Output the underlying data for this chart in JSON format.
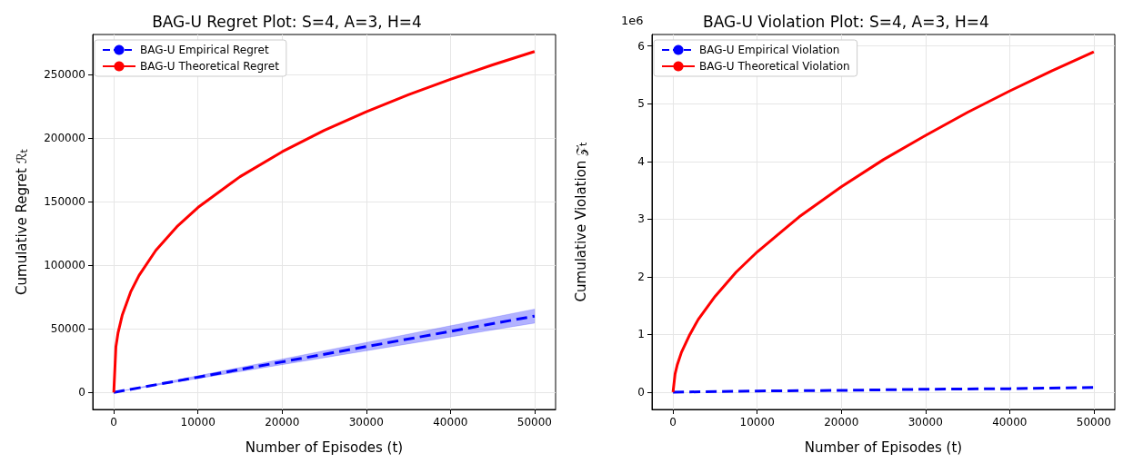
{
  "chart_data": [
    {
      "type": "line",
      "title": "BAG-U Regret Plot: S=4, A=3, H=4",
      "xlabel": "Number of Episodes (t)",
      "ylabel": "Cumulative Regret ℛ$_{t}$",
      "series": [
        {
          "name": "BAG-U Empirical Regret",
          "color": "#0000ff",
          "line_style": "dashed",
          "x": [
            0,
            10000,
            20000,
            30000,
            40000,
            50000
          ],
          "values": [
            0,
            12000,
            24000,
            36000,
            48000,
            60000
          ],
          "lower": [
            0,
            10900,
            21800,
            32700,
            43600,
            54500
          ],
          "upper": [
            0,
            13100,
            26200,
            39300,
            52400,
            65500
          ]
        },
        {
          "name": "BAG-U Theoretical Regret",
          "color": "#ff0000",
          "line_style": "solid",
          "x": [
            0,
            250,
            500,
            1000,
            2000,
            3000,
            5000,
            7500,
            10000,
            15000,
            20000,
            25000,
            30000,
            35000,
            40000,
            45000,
            50000
          ],
          "values": [
            0,
            35800,
            46600,
            60600,
            78900,
            92000,
            111700,
            130300,
            145400,
            169600,
            189200,
            206000,
            220700,
            234000,
            246200,
            257500,
            268000
          ]
        }
      ],
      "xlim": [
        -2500,
        52500
      ],
      "xticks": [
        0,
        10000,
        20000,
        30000,
        40000,
        50000
      ],
      "ylim": [
        -13400,
        281400
      ],
      "yticks": [
        0,
        50000,
        100000,
        150000,
        200000,
        250000
      ],
      "grid": true,
      "legend": "top left",
      "marker": "none"
    },
    {
      "type": "line",
      "title": "BAG-U Violation Plot: S=4, A=3, H=4",
      "xlabel": "Number of Episodes (t)",
      "ylabel": "Cumulative Violation 𝒵$_{t}$",
      "annotations": [
        "1e6"
      ],
      "series": [
        {
          "name": "BAG-U Empirical Violation",
          "color": "#0000ff",
          "line_style": "dashed",
          "x": [
            0,
            10000,
            20000,
            30000,
            40000,
            50000
          ],
          "values": [
            0,
            0.02,
            0.03,
            0.05,
            0.06,
            0.08
          ]
        },
        {
          "name": "BAG-U Theoretical Violation",
          "color": "#ff0000",
          "line_style": "solid",
          "x": [
            0,
            250,
            500,
            1000,
            2000,
            3000,
            5000,
            7500,
            10000,
            15000,
            20000,
            25000,
            30000,
            35000,
            40000,
            45000,
            50000
          ],
          "values": [
            0,
            0.32,
            0.47,
            0.69,
            1.0,
            1.26,
            1.66,
            2.08,
            2.43,
            3.04,
            3.56,
            4.03,
            4.45,
            4.85,
            5.22,
            5.57,
            5.9
          ]
        }
      ],
      "xlim": [
        -2500,
        52500
      ],
      "xticks": [
        0,
        10000,
        20000,
        30000,
        40000,
        50000
      ],
      "ylim": [
        -0.3,
        6.2
      ],
      "yticks": [
        0,
        1,
        2,
        3,
        4,
        5,
        6
      ],
      "grid": true,
      "legend": "top left",
      "marker": "none"
    }
  ]
}
